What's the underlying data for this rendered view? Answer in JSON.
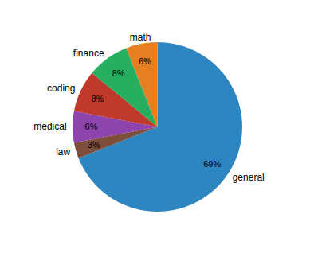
{
  "chart_data": {
    "type": "pie",
    "categories": [
      "general",
      "law",
      "medical",
      "coding",
      "finance",
      "math"
    ],
    "values": [
      69,
      3,
      6,
      8,
      8,
      6
    ],
    "value_labels": [
      "69%",
      "3%",
      "6%",
      "8%",
      "8%",
      "6%"
    ],
    "colors": [
      "#2e86c1",
      "#7d4f3a",
      "#8e44ad",
      "#c0392b",
      "#27ae60",
      "#e67e22"
    ],
    "data_labels": true
  }
}
